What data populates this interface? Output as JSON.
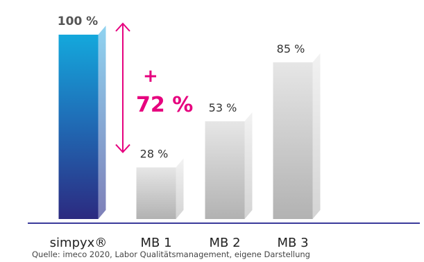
{
  "chart_data": {
    "type": "bar",
    "categories": [
      "simpyx®",
      "MB 1",
      "MB 2",
      "MB 3"
    ],
    "values": [
      100,
      28,
      53,
      85
    ],
    "value_labels": [
      "100 %",
      "28 %",
      "53 %",
      "85 %"
    ],
    "ylim": [
      0,
      100
    ],
    "grid": false,
    "annotation": {
      "from_category": "MB 1",
      "to_category": "simpyx®",
      "plus": "+",
      "value": "72 %"
    }
  },
  "colors": {
    "highlight_bar_top": "#14a8dc",
    "highlight_bar_bottom": "#2c2a80",
    "bar_light": "#e4e4e4",
    "bar_dark": "#b4b4b4",
    "baseline": "#3a3a9a",
    "accent": "#e6007e",
    "text": "#333333"
  },
  "source": "Quelle: imeco 2020, Labor Qualitätsmanagement, eigene Darstellung"
}
